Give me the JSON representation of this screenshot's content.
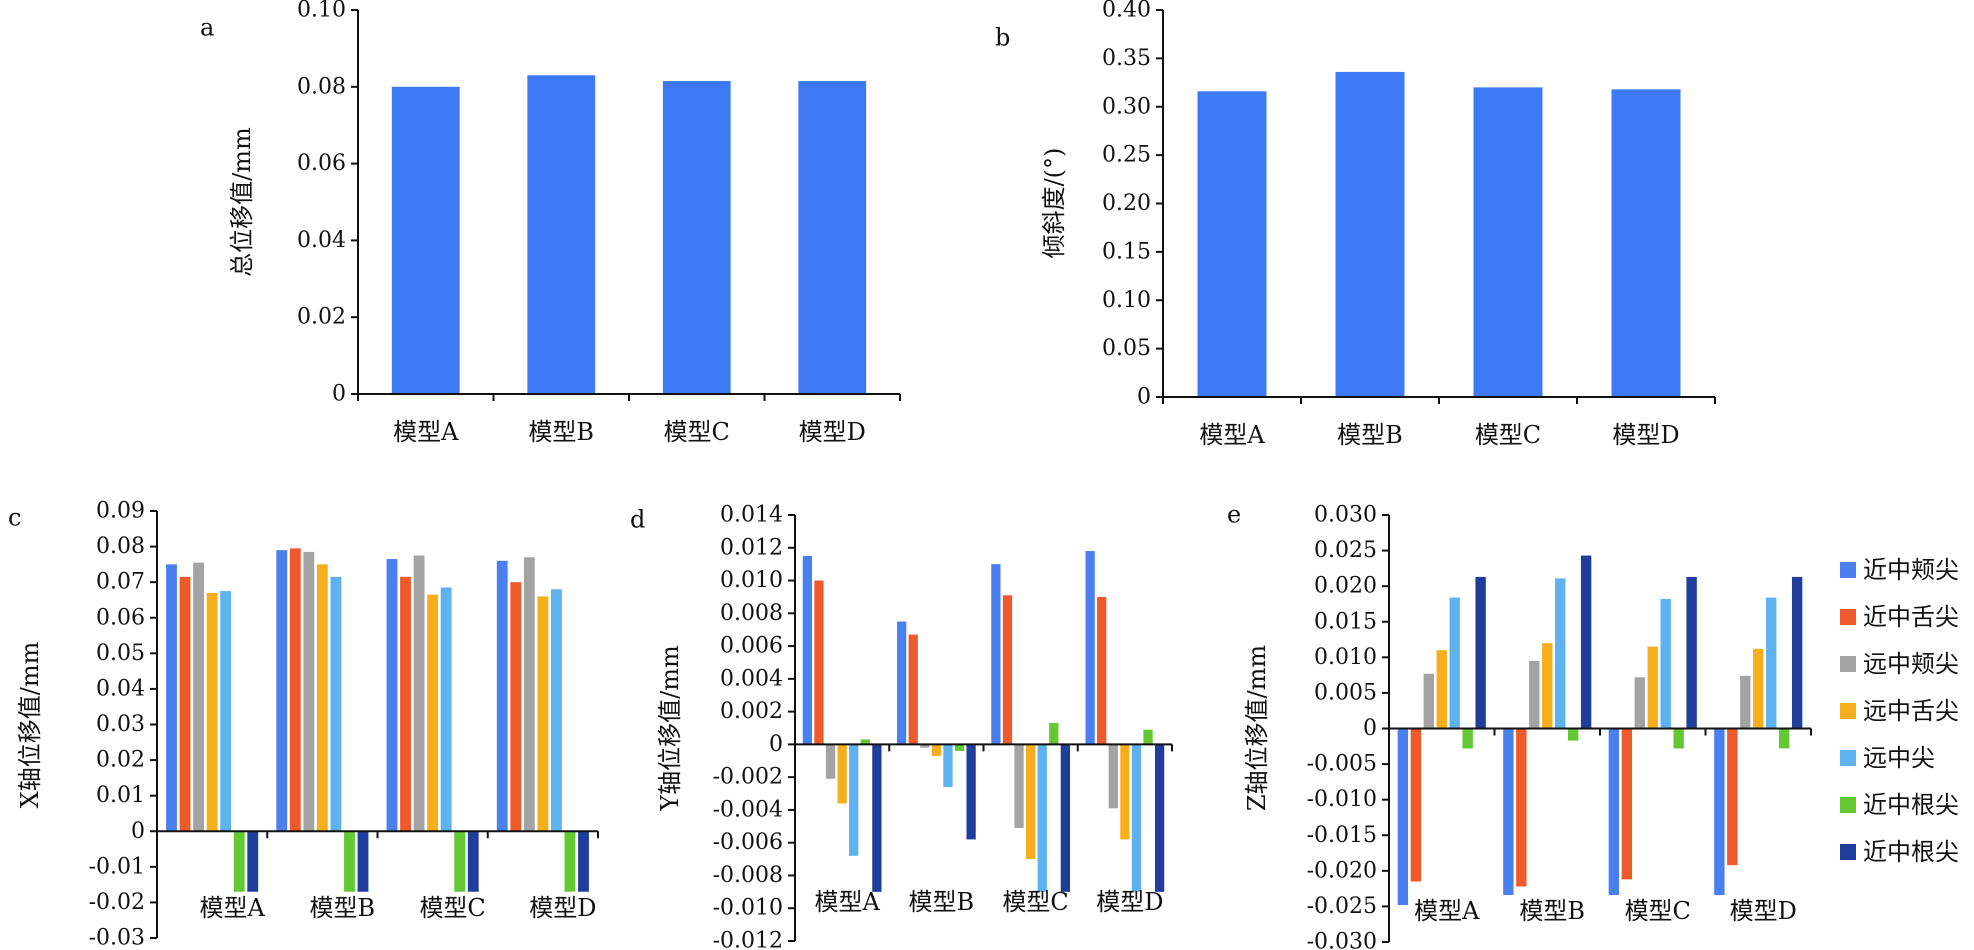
{
  "colors": {
    "bar_single": "#3d78f5",
    "series": [
      "#4a7ff0",
      "#ee5a2c",
      "#a3a3a3",
      "#f7ae1c",
      "#5db2ef",
      "#63c832",
      "#1f3e9c"
    ]
  },
  "legend": {
    "placement": "right",
    "items": [
      "近中颊尖",
      "近中舌尖",
      "远中颊尖",
      "远中舌尖",
      "远中尖",
      "近中根尖",
      "近中根尖"
    ]
  },
  "chart_data": [
    {
      "id": "a",
      "panel_label": "a",
      "type": "bar",
      "ylabel": "总位移值/mm",
      "categories": [
        "模型A",
        "模型B",
        "模型C",
        "模型D"
      ],
      "values": [
        0.08,
        0.083,
        0.0815,
        0.0815
      ],
      "ylim": [
        0,
        0.1
      ],
      "yticks": [
        "0",
        "0.02",
        "0.04",
        "0.06",
        "0.08",
        "0.10"
      ],
      "ytick_values": [
        0,
        0.02,
        0.04,
        0.06,
        0.08,
        0.1
      ],
      "grid": false
    },
    {
      "id": "b",
      "panel_label": "b",
      "type": "bar",
      "ylabel": "倾斜度/(°)",
      "categories": [
        "模型A",
        "模型B",
        "模型C",
        "模型D"
      ],
      "values": [
        0.316,
        0.336,
        0.32,
        0.318
      ],
      "ylim": [
        0,
        0.4
      ],
      "yticks": [
        "0",
        "0.05",
        "0.10",
        "0.15",
        "0.20",
        "0.25",
        "0.30",
        "0.35",
        "0.40"
      ],
      "ytick_values": [
        0,
        0.05,
        0.1,
        0.15,
        0.2,
        0.25,
        0.3,
        0.35,
        0.4
      ],
      "grid": false
    },
    {
      "id": "c",
      "panel_label": "c",
      "type": "bar",
      "ylabel": "X轴位移值/mm",
      "categories": [
        "模型A",
        "模型B",
        "模型C",
        "模型D"
      ],
      "ylim": [
        -0.03,
        0.09
      ],
      "yticks": [
        "-0.03",
        "-0.02",
        "-0.01",
        "0",
        "0.01",
        "0.02",
        "0.03",
        "0.04",
        "0.05",
        "0.06",
        "0.07",
        "0.08",
        "0.09"
      ],
      "ytick_values": [
        -0.03,
        -0.02,
        -0.01,
        0,
        0.01,
        0.02,
        0.03,
        0.04,
        0.05,
        0.06,
        0.07,
        0.08,
        0.09
      ],
      "series": [
        {
          "name": "近中颊尖",
          "values": [
            0.075,
            0.079,
            0.0765,
            0.076
          ]
        },
        {
          "name": "近中舌尖",
          "values": [
            0.0715,
            0.0795,
            0.0715,
            0.07
          ]
        },
        {
          "name": "远中颊尖",
          "values": [
            0.0755,
            0.0785,
            0.0775,
            0.077
          ]
        },
        {
          "name": "远中舌尖",
          "values": [
            0.067,
            0.075,
            0.0665,
            0.066
          ]
        },
        {
          "name": "远中尖",
          "values": [
            0.0675,
            0.0715,
            0.0685,
            0.068
          ]
        },
        {
          "name": "近中根尖",
          "values": [
            -0.017,
            -0.017,
            -0.017,
            -0.017
          ]
        },
        {
          "name": "近中根尖",
          "values": [
            -0.017,
            -0.017,
            -0.017,
            -0.017
          ]
        }
      ],
      "grid": false
    },
    {
      "id": "d",
      "panel_label": "d",
      "type": "bar",
      "ylabel": "Y轴位移值/mm",
      "categories": [
        "模型A",
        "模型B",
        "模型C",
        "模型D"
      ],
      "ylim": [
        -0.012,
        0.014
      ],
      "yticks": [
        "-0.012",
        "-0.010",
        "-0.008",
        "-0.006",
        "-0.004",
        "-0.002",
        "0",
        "0.002",
        "0.004",
        "0.006",
        "0.008",
        "0.010",
        "0.012",
        "0.014"
      ],
      "ytick_values": [
        -0.012,
        -0.01,
        -0.008,
        -0.006,
        -0.004,
        -0.002,
        0,
        0.002,
        0.004,
        0.006,
        0.008,
        0.01,
        0.012,
        0.014
      ],
      "series": [
        {
          "name": "近中颊尖",
          "values": [
            0.0115,
            0.0075,
            0.011,
            0.0118
          ]
        },
        {
          "name": "近中舌尖",
          "values": [
            0.01,
            0.0067,
            0.0091,
            0.009
          ]
        },
        {
          "name": "远中颊尖",
          "values": [
            -0.0021,
            -0.0002,
            -0.0051,
            -0.0039
          ]
        },
        {
          "name": "远中舌尖",
          "values": [
            -0.0036,
            -0.0007,
            -0.007,
            -0.0058
          ]
        },
        {
          "name": "远中尖",
          "values": [
            -0.0068,
            -0.0026,
            -0.009,
            -0.009
          ]
        },
        {
          "name": "近中根尖",
          "values": [
            0.0003,
            -0.0004,
            0.0013,
            0.0009
          ]
        },
        {
          "name": "近中根尖",
          "values": [
            -0.009,
            -0.0058,
            -0.009,
            -0.009
          ]
        }
      ],
      "grid": false
    },
    {
      "id": "e",
      "panel_label": "e",
      "type": "bar",
      "ylabel": "Z轴位移值/mm",
      "categories": [
        "模型A",
        "模型B",
        "模型C",
        "模型D"
      ],
      "ylim": [
        -0.03,
        0.03
      ],
      "yticks": [
        "-0.030",
        "-0.025",
        "-0.020",
        "-0.015",
        "-0.010",
        "-0.005",
        "0",
        "0.005",
        "0.010",
        "0.015",
        "0.020",
        "0.025",
        "0.030"
      ],
      "ytick_values": [
        -0.03,
        -0.025,
        -0.02,
        -0.015,
        -0.01,
        -0.005,
        0,
        0.005,
        0.01,
        0.015,
        0.02,
        0.025,
        0.03
      ],
      "series": [
        {
          "name": "近中颊尖",
          "values": [
            -0.0248,
            -0.0234,
            -0.0234,
            -0.0234
          ]
        },
        {
          "name": "近中舌尖",
          "values": [
            -0.0215,
            -0.0222,
            -0.0212,
            -0.0192
          ]
        },
        {
          "name": "远中颊尖",
          "values": [
            0.0077,
            0.0095,
            0.0072,
            0.0074
          ]
        },
        {
          "name": "远中舌尖",
          "values": [
            0.011,
            0.012,
            0.0115,
            0.0112
          ]
        },
        {
          "name": "远中尖",
          "values": [
            0.0184,
            0.0211,
            0.0182,
            0.0184
          ]
        },
        {
          "name": "近中根尖",
          "values": [
            -0.0028,
            -0.0017,
            -0.0028,
            -0.0028
          ]
        },
        {
          "name": "近中根尖",
          "values": [
            0.0213,
            0.0243,
            0.0213,
            0.0213
          ]
        }
      ],
      "grid": false
    }
  ]
}
